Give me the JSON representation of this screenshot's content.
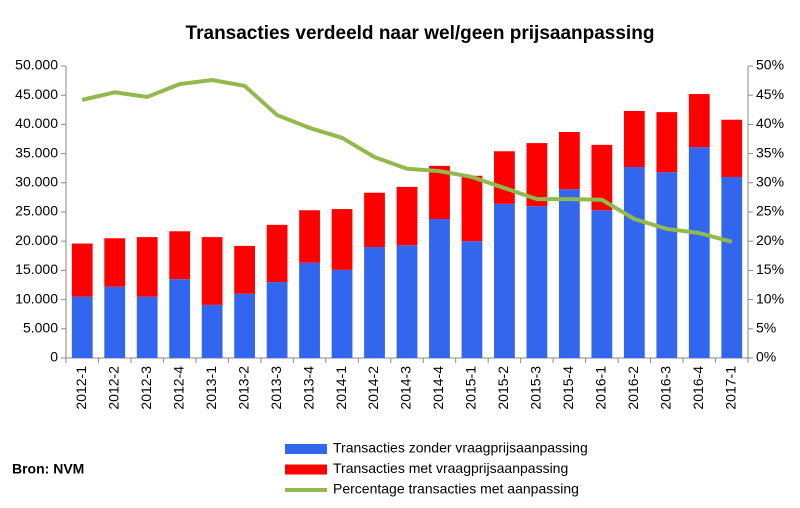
{
  "chart_data": {
    "type": "bar",
    "title": "Transacties verdeeld naar wel/geen prijsaanpassing",
    "note": "Bron: NVM",
    "categories": [
      "2012-1",
      "2012-2",
      "2012-3",
      "2012-4",
      "2013-1",
      "2013-2",
      "2013-3",
      "2013-4",
      "2014-1",
      "2014-2",
      "2014-3",
      "2014-4",
      "2015-1",
      "2015-2",
      "2015-3",
      "2015-4",
      "2016-1",
      "2016-2",
      "2016-3",
      "2016-4",
      "2017-1"
    ],
    "stacked": true,
    "grid": false,
    "series": [
      {
        "name": "Transacties zonder vraagprijsaanpassing",
        "color": "#3366ee",
        "values": [
          10500,
          12200,
          10500,
          13500,
          9100,
          11000,
          13000,
          16300,
          15100,
          19000,
          19300,
          23800,
          20000,
          26400,
          26000,
          28900,
          25300,
          32700,
          31800,
          36100,
          31000
        ]
      },
      {
        "name": "Transacties met vraagprijsaanpassing",
        "color": "#ff0000",
        "values": [
          9100,
          8300,
          10200,
          8200,
          11600,
          8200,
          9800,
          9000,
          10400,
          9300,
          10000,
          9100,
          11200,
          9000,
          10800,
          9800,
          11200,
          9600,
          10300,
          9100,
          9800
        ]
      },
      {
        "name": "Percentage transacties met aanpassing",
        "color": "#92b94c",
        "type": "line",
        "axis": "y2",
        "values": [
          44.2,
          45.5,
          44.7,
          46.9,
          47.6,
          46.6,
          41.6,
          39.4,
          37.7,
          34.4,
          32.4,
          32.0,
          31.0,
          29.1,
          27.2,
          27.2,
          27.1,
          23.8,
          22.1,
          21.4,
          19.9
        ]
      }
    ],
    "ylim": [
      0,
      50000
    ],
    "yticks": [
      0,
      {
        "value": 5000,
        "label": "5.000"
      },
      {
        "value": 10000,
        "label": "10.000"
      },
      {
        "value": 15000,
        "label": "15.000"
      },
      {
        "value": 20000,
        "label": "20.000"
      },
      {
        "value": 25000,
        "label": "25.000"
      },
      {
        "value": 30000,
        "label": "30.000"
      },
      {
        "value": 35000,
        "label": "35.000"
      },
      {
        "value": 40000,
        "label": "40.000"
      },
      {
        "value": 45000,
        "label": "45.000"
      },
      {
        "value": 50000,
        "label": "50.000"
      }
    ],
    "y2lim": [
      0,
      50
    ],
    "y2ticks": [
      {
        "value": 0,
        "label": "0%"
      },
      {
        "value": 5,
        "label": "5%"
      },
      {
        "value": 10,
        "label": "10%"
      },
      {
        "value": 15,
        "label": "15%"
      },
      {
        "value": 20,
        "label": "20%"
      },
      {
        "value": 25,
        "label": "25%"
      },
      {
        "value": 30,
        "label": "30%"
      },
      {
        "value": 35,
        "label": "35%"
      },
      {
        "value": 40,
        "label": "40%"
      },
      {
        "value": 45,
        "label": "45%"
      },
      {
        "value": 50,
        "label": "50%"
      }
    ]
  }
}
